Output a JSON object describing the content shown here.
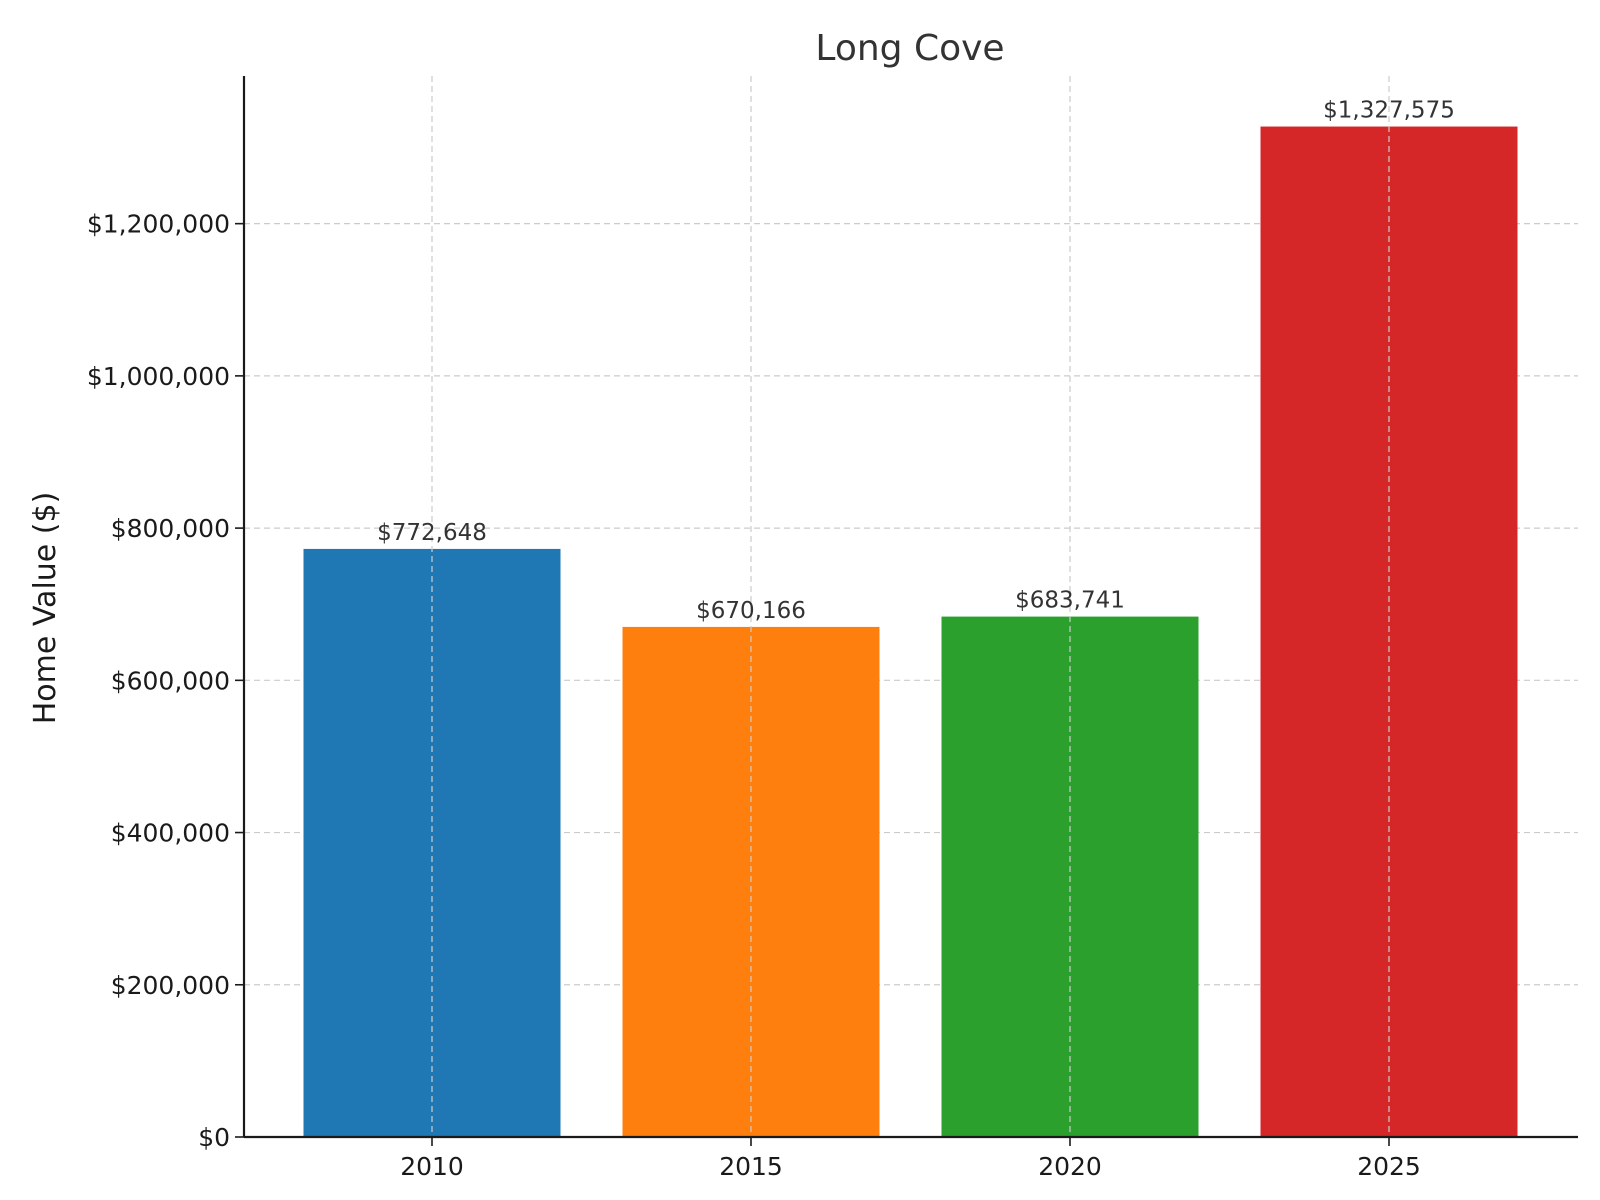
{
  "chart_data": {
    "type": "bar",
    "title": "Long Cove",
    "xlabel": "",
    "ylabel": "Home Value ($)",
    "categories": [
      "2010",
      "2015",
      "2020",
      "2025"
    ],
    "values": [
      772648,
      670166,
      683741,
      1327575
    ],
    "value_labels": [
      "$772,648",
      "$670,166",
      "$683,741",
      "$1,327,575"
    ],
    "colors": [
      "#1f77b4",
      "#ff7f0e",
      "#2ca02c",
      "#d62728"
    ],
    "ylim": [
      0,
      1394000
    ],
    "yticks": [
      0,
      200000,
      400000,
      600000,
      800000,
      1000000,
      1200000
    ],
    "ytick_labels": [
      "$0",
      "$200,000",
      "$400,000",
      "$600,000",
      "$800,000",
      "$1,000,000",
      "$1,200,000"
    ],
    "grid": true
  }
}
